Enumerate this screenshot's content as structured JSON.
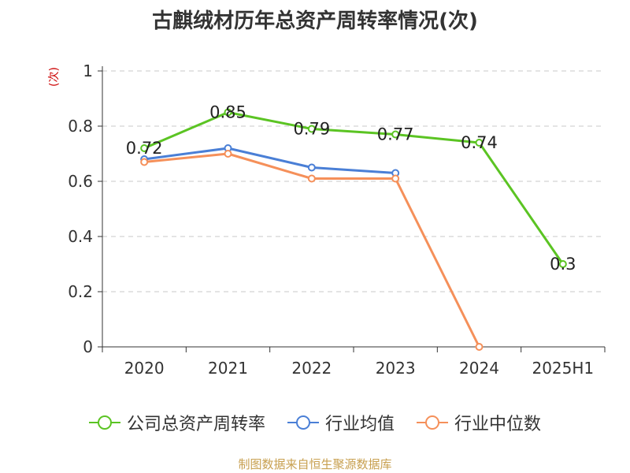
{
  "chart_data": {
    "type": "line",
    "title": "古麒绒材历年总资产周转率情况(次)",
    "ylabel": "(次)",
    "categories": [
      "2020",
      "2021",
      "2022",
      "2023",
      "2024",
      "2025H1"
    ],
    "ylim": [
      0,
      1
    ],
    "yticks": [
      "0",
      "0.2",
      "0.4",
      "0.6",
      "0.8",
      "1"
    ],
    "grid": true,
    "legend_position": "bottom",
    "series": [
      {
        "name": "公司总资产周转率",
        "color": "#5bc423",
        "values": [
          0.72,
          0.85,
          0.79,
          0.77,
          0.74,
          0.3
        ],
        "labels": [
          "0.72",
          "0.85",
          "0.79",
          "0.77",
          "0.74",
          "0.3"
        ]
      },
      {
        "name": "行业均值",
        "color": "#4a7fd6",
        "values": [
          0.68,
          0.72,
          0.65,
          0.63,
          null,
          null
        ]
      },
      {
        "name": "行业中位数",
        "color": "#f5905a",
        "values": [
          0.67,
          0.7,
          0.61,
          0.61,
          0.0,
          null
        ]
      }
    ]
  },
  "source": "制图数据来自恒生聚源数据库"
}
